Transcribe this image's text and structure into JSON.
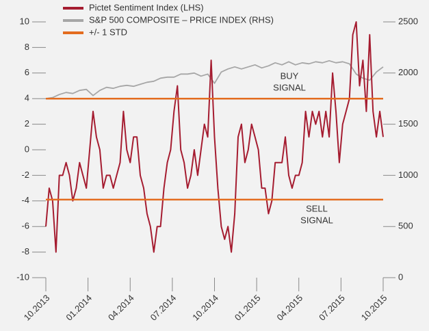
{
  "chart_data": {
    "type": "line",
    "xlim": [
      2013.75,
      2015.75
    ],
    "xticks": [
      {
        "value": 2013.75,
        "label": "10.2013"
      },
      {
        "value": 2014.0,
        "label": "01.2014"
      },
      {
        "value": 2014.25,
        "label": "04.2014"
      },
      {
        "value": 2014.5,
        "label": "07.2014"
      },
      {
        "value": 2014.75,
        "label": "10.2014"
      },
      {
        "value": 2015.0,
        "label": "01.2015"
      },
      {
        "value": 2015.25,
        "label": "04.2015"
      },
      {
        "value": 2015.5,
        "label": "07.2015"
      },
      {
        "value": 2015.75,
        "label": "10.2015"
      }
    ],
    "ylim": [
      -10,
      10
    ],
    "yticks": [
      -10,
      -8,
      -6,
      -4,
      -2,
      0,
      2,
      4,
      6,
      8,
      10
    ],
    "y2lim": [
      0,
      2500
    ],
    "y2ticks": [
      0,
      500,
      1000,
      1500,
      2000,
      2500
    ],
    "series": [
      {
        "name": "Pictet Sentiment Index (LHS)",
        "color": "#a51c30",
        "x": [
          2013.75,
          2013.77,
          2013.79,
          2013.81,
          2013.83,
          2013.85,
          2013.87,
          2013.89,
          2013.91,
          2013.93,
          2013.95,
          2013.97,
          2013.99,
          2014.01,
          2014.03,
          2014.05,
          2014.07,
          2014.09,
          2014.11,
          2014.13,
          2014.15,
          2014.17,
          2014.19,
          2014.21,
          2014.23,
          2014.25,
          2014.27,
          2014.29,
          2014.31,
          2014.33,
          2014.35,
          2014.37,
          2014.39,
          2014.41,
          2014.43,
          2014.45,
          2014.47,
          2014.49,
          2014.51,
          2014.53,
          2014.55,
          2014.57,
          2014.59,
          2014.61,
          2014.63,
          2014.65,
          2014.67,
          2014.69,
          2014.71,
          2014.73,
          2014.75,
          2014.77,
          2014.79,
          2014.81,
          2014.83,
          2014.85,
          2014.87,
          2014.89,
          2014.91,
          2014.93,
          2014.95,
          2014.97,
          2014.99,
          2015.01,
          2015.03,
          2015.05,
          2015.07,
          2015.09,
          2015.11,
          2015.13,
          2015.15,
          2015.17,
          2015.19,
          2015.21,
          2015.23,
          2015.25,
          2015.27,
          2015.29,
          2015.31,
          2015.33,
          2015.35,
          2015.37,
          2015.39,
          2015.41,
          2015.43,
          2015.45,
          2015.47,
          2015.49,
          2015.51,
          2015.53,
          2015.55,
          2015.57,
          2015.59,
          2015.61,
          2015.63,
          2015.65,
          2015.67,
          2015.69,
          2015.71,
          2015.73,
          2015.75
        ],
        "values": [
          -6,
          -3,
          -4,
          -8,
          -2,
          -2,
          -1,
          -2,
          -4,
          -3,
          -1,
          -2,
          -3,
          0,
          3,
          1,
          0,
          -3,
          -2,
          -2,
          -3,
          -2,
          -1,
          3,
          0,
          -1,
          1,
          1,
          -2,
          -3,
          -5,
          -6,
          -8,
          -6,
          -6,
          -3,
          -1,
          0,
          3,
          5,
          0,
          -1,
          -3,
          -2,
          0,
          -2,
          0,
          2,
          1,
          7,
          1,
          -3,
          -6,
          -7,
          -6,
          -8,
          -5,
          1,
          2,
          -1,
          0,
          2,
          1,
          0,
          -3,
          -3,
          -5,
          -4,
          -1,
          -1,
          -1,
          1,
          -2,
          -3,
          -2,
          -2,
          -1,
          3,
          1,
          3,
          2,
          3,
          1,
          3,
          1,
          6,
          3,
          -1,
          2,
          3,
          4,
          9,
          10,
          5,
          7,
          3,
          9,
          3,
          1,
          3,
          1
        ]
      },
      {
        "name": "S&P 500 COMPOSITE – PRICE INDEX (RHS)",
        "color": "#a6a6a6",
        "axis": "y2",
        "x": [
          2013.75,
          2013.79,
          2013.83,
          2013.87,
          2013.91,
          2013.95,
          2013.99,
          2014.03,
          2014.07,
          2014.11,
          2014.15,
          2014.19,
          2014.23,
          2014.27,
          2014.31,
          2014.35,
          2014.39,
          2014.43,
          2014.47,
          2014.51,
          2014.55,
          2014.59,
          2014.63,
          2014.67,
          2014.71,
          2014.75,
          2014.79,
          2014.83,
          2014.87,
          2014.91,
          2014.95,
          2014.99,
          2015.03,
          2015.07,
          2015.11,
          2015.15,
          2015.19,
          2015.23,
          2015.27,
          2015.31,
          2015.35,
          2015.39,
          2015.43,
          2015.47,
          2015.51,
          2015.55,
          2015.59,
          2015.63,
          2015.67,
          2015.71,
          2015.75
        ],
        "values": [
          1750,
          1760,
          1790,
          1810,
          1800,
          1830,
          1840,
          1780,
          1830,
          1860,
          1850,
          1870,
          1880,
          1870,
          1890,
          1910,
          1920,
          1950,
          1960,
          1960,
          1990,
          1990,
          2000,
          1970,
          1990,
          1900,
          2010,
          2040,
          2060,
          2040,
          2060,
          2080,
          2050,
          2070,
          2100,
          2080,
          2110,
          2080,
          2100,
          2090,
          2110,
          2100,
          2120,
          2100,
          2110,
          2090,
          1990,
          1950,
          1930,
          2010,
          2060
        ]
      }
    ],
    "std_lines": {
      "name": "+/- 1 STD",
      "color": "#e36c1f",
      "values": [
        4,
        -3.9
      ]
    },
    "annotations": [
      [
        "BUY",
        "SIGNAL"
      ],
      [
        "SELL",
        "SIGNAL"
      ]
    ]
  }
}
